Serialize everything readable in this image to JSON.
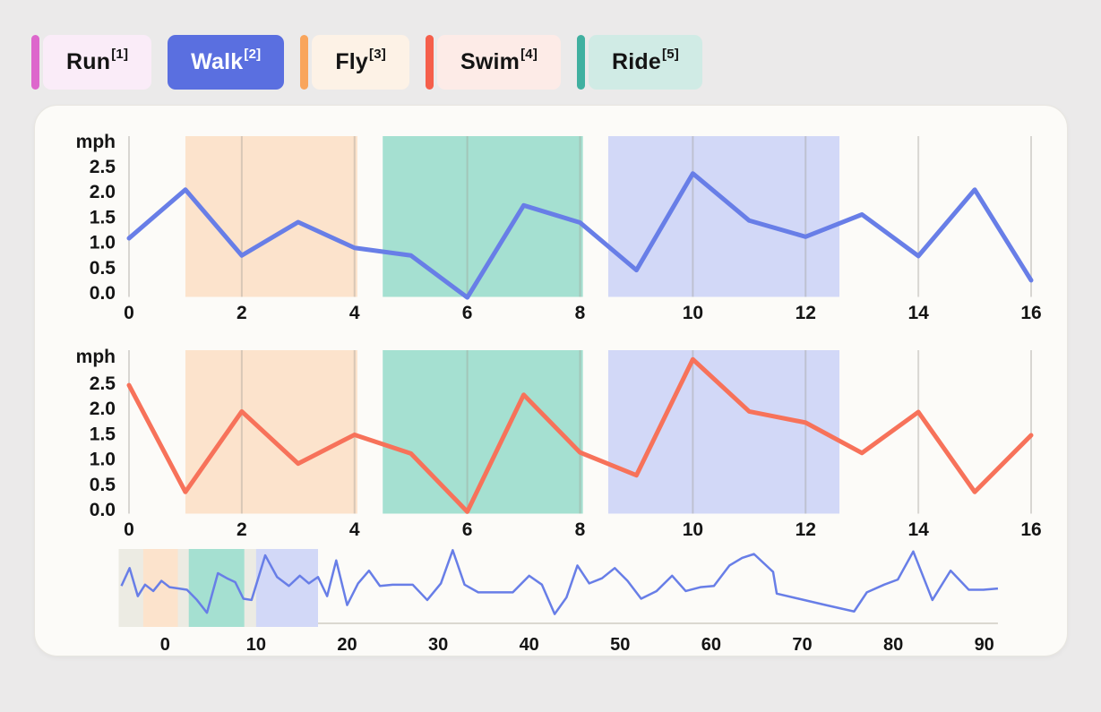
{
  "page": {
    "background": "#ebeaea",
    "card_background": "#fcfbf8",
    "card_border": "#e8e6e0",
    "gridline_color": "#9d9a93",
    "tick_text_color": "#141414"
  },
  "chips": [
    {
      "label": "Run",
      "superscript": "[1]",
      "accent": "#dd67cc",
      "background": "#faecf8",
      "text_color": "#141414",
      "selected": false
    },
    {
      "label": "Walk",
      "superscript": "[2]",
      "accent": "#5a6fe0",
      "background": "#5a6fe0",
      "text_color": "#ffffff",
      "selected": true
    },
    {
      "label": "Fly",
      "superscript": "[3]",
      "accent": "#f9a55c",
      "background": "#fdf2e6",
      "text_color": "#141414",
      "selected": false
    },
    {
      "label": "Swim",
      "superscript": "[4]",
      "accent": "#f55f4b",
      "background": "#fdebe7",
      "text_color": "#141414",
      "selected": false
    },
    {
      "label": "Ride",
      "superscript": "[5]",
      "accent": "#41b0a0",
      "background": "#d0ebe5",
      "text_color": "#141414",
      "selected": false
    }
  ],
  "chart_data": [
    {
      "type": "line",
      "name": "speed-chart-top",
      "ylabel": "mph",
      "line_color": "#687ee7",
      "line_width": 5,
      "x": [
        0,
        1,
        2,
        3,
        4,
        5,
        6,
        7,
        8,
        9,
        10,
        11,
        12,
        13,
        14,
        15,
        16
      ],
      "values": [
        1.07,
        2.03,
        0.73,
        1.39,
        0.88,
        0.73,
        -0.1,
        1.72,
        1.38,
        0.44,
        2.35,
        1.42,
        1.1,
        1.54,
        0.72,
        2.03,
        0.24
      ],
      "xticks": [
        0,
        2,
        4,
        6,
        8,
        10,
        12,
        14,
        16
      ],
      "yticks": [
        2.5,
        2.0,
        1.5,
        1.0,
        0.5,
        0.0
      ],
      "xlim": [
        0,
        16
      ],
      "ylim": [
        0,
        3.1
      ],
      "grid": "vertical-only",
      "bands": [
        {
          "name": "fly-band",
          "x0": 1.0,
          "x1": 4.05,
          "color": "#fce3cc"
        },
        {
          "name": "ride-band",
          "x0": 4.5,
          "x1": 8.05,
          "color": "#a5e0d1"
        },
        {
          "name": "walk-band",
          "x0": 8.5,
          "x1": 12.6,
          "color": "#d2d8f7"
        }
      ]
    },
    {
      "type": "line",
      "name": "speed-chart-bottom",
      "ylabel": "mph",
      "line_color": "#f7725a",
      "line_width": 5,
      "x": [
        0,
        1,
        2,
        3,
        4,
        5,
        6,
        7,
        8,
        9,
        10,
        11,
        12,
        13,
        14,
        15,
        16
      ],
      "values": [
        2.45,
        0.34,
        1.93,
        0.9,
        1.47,
        1.1,
        -0.05,
        2.26,
        1.12,
        0.67,
        2.96,
        1.93,
        1.71,
        1.11,
        1.92,
        0.34,
        1.46
      ],
      "xticks": [
        0,
        2,
        4,
        6,
        8,
        10,
        12,
        14,
        16
      ],
      "yticks": [
        2.5,
        2.0,
        1.5,
        1.0,
        0.5,
        0.0
      ],
      "xlim": [
        0,
        16
      ],
      "ylim": [
        0,
        3.1
      ],
      "grid": "vertical-only",
      "bands": [
        {
          "name": "fly-band",
          "x0": 1.0,
          "x1": 4.05,
          "color": "#fce3cc"
        },
        {
          "name": "ride-band",
          "x0": 4.5,
          "x1": 8.05,
          "color": "#a5e0d1"
        },
        {
          "name": "walk-band",
          "x0": 8.5,
          "x1": 12.6,
          "color": "#d2d8f7"
        }
      ]
    },
    {
      "type": "line",
      "name": "overview-chart",
      "line_color": "#687ee7",
      "line_width": 2.5,
      "xticks": [
        0,
        10,
        20,
        30,
        40,
        50,
        60,
        70,
        80,
        90
      ],
      "xlim": [
        -5.1,
        95
      ],
      "ylim": [
        0,
        3
      ],
      "axis_line_color": "#dbd8d0",
      "selection": {
        "x0": -5.1,
        "x1": 16.8,
        "color": "#ecebe3"
      },
      "bands": [
        {
          "name": "fly-band",
          "x0": -2.4,
          "x1": 1.4,
          "color": "#fce3cc"
        },
        {
          "name": "ride-band",
          "x0": 2.6,
          "x1": 8.7,
          "color": "#a5e0d1"
        },
        {
          "name": "walk-band",
          "x0": 10.0,
          "x1": 16.8,
          "color": "#d2d8f7"
        }
      ],
      "points": [
        [
          -4.8,
          1.5
        ],
        [
          -3.9,
          2.2
        ],
        [
          -3.0,
          1.1
        ],
        [
          -2.2,
          1.55
        ],
        [
          -1.3,
          1.3
        ],
        [
          -0.4,
          1.7
        ],
        [
          0.5,
          1.45
        ],
        [
          1.5,
          1.4
        ],
        [
          2.4,
          1.35
        ],
        [
          3.5,
          0.95
        ],
        [
          4.6,
          0.45
        ],
        [
          5.8,
          2.0
        ],
        [
          6.8,
          1.8
        ],
        [
          7.7,
          1.65
        ],
        [
          8.6,
          1.0
        ],
        [
          9.5,
          0.95
        ],
        [
          11.0,
          2.7
        ],
        [
          12.3,
          1.85
        ],
        [
          13.6,
          1.5
        ],
        [
          14.8,
          1.9
        ],
        [
          15.8,
          1.6
        ],
        [
          16.8,
          1.85
        ],
        [
          17.8,
          1.1
        ],
        [
          18.8,
          2.5
        ],
        [
          20.0,
          0.75
        ],
        [
          21.2,
          1.6
        ],
        [
          22.4,
          2.1
        ],
        [
          23.6,
          1.5
        ],
        [
          25.0,
          1.55
        ],
        [
          27.2,
          1.55
        ],
        [
          28.8,
          0.95
        ],
        [
          30.3,
          1.6
        ],
        [
          31.6,
          2.9
        ],
        [
          32.9,
          1.55
        ],
        [
          34.4,
          1.25
        ],
        [
          36.2,
          1.25
        ],
        [
          38.2,
          1.25
        ],
        [
          40.0,
          1.9
        ],
        [
          41.4,
          1.55
        ],
        [
          42.8,
          0.4
        ],
        [
          44.1,
          1.05
        ],
        [
          45.3,
          2.3
        ],
        [
          46.6,
          1.6
        ],
        [
          48.0,
          1.8
        ],
        [
          49.4,
          2.2
        ],
        [
          50.8,
          1.7
        ],
        [
          52.3,
          1.0
        ],
        [
          54.0,
          1.3
        ],
        [
          55.7,
          1.9
        ],
        [
          57.2,
          1.3
        ],
        [
          58.8,
          1.45
        ],
        [
          60.3,
          1.5
        ],
        [
          62.0,
          2.3
        ],
        [
          63.4,
          2.6
        ],
        [
          64.7,
          2.75
        ],
        [
          66.8,
          2.05
        ],
        [
          67.2,
          1.2
        ],
        [
          69.6,
          1.0
        ],
        [
          72.6,
          0.75
        ],
        [
          75.7,
          0.5
        ],
        [
          77.1,
          1.25
        ],
        [
          79.0,
          1.55
        ],
        [
          80.5,
          1.75
        ],
        [
          82.2,
          2.85
        ],
        [
          84.3,
          0.95
        ],
        [
          86.3,
          2.1
        ],
        [
          88.3,
          1.35
        ],
        [
          89.9,
          1.35
        ],
        [
          91.5,
          1.4
        ]
      ]
    }
  ]
}
